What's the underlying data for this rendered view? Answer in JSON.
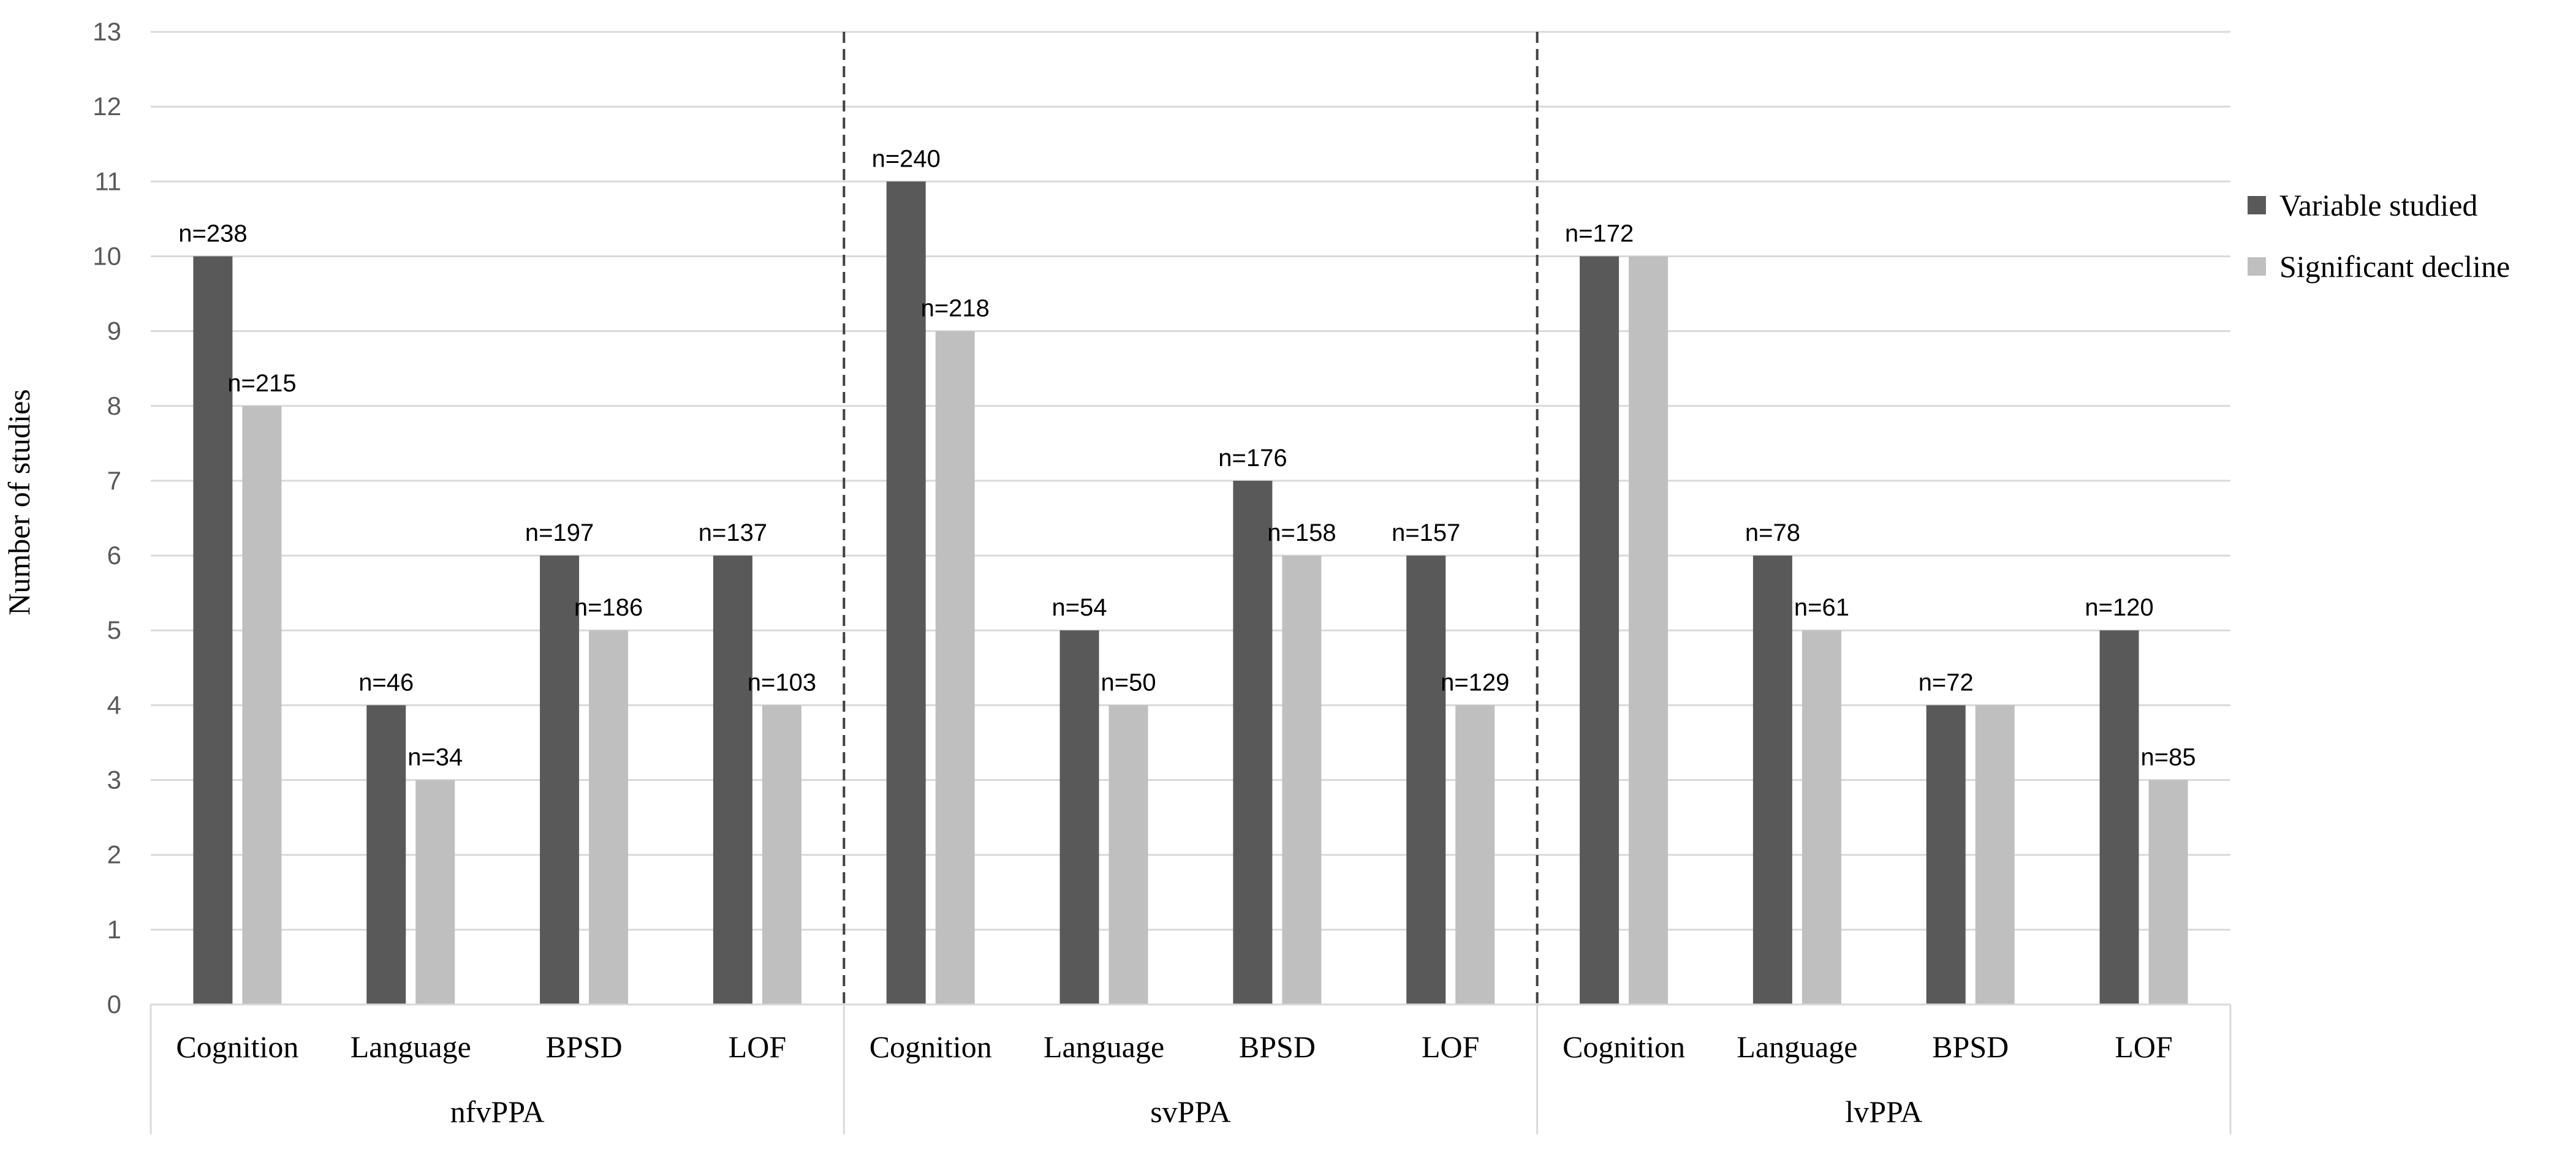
{
  "colors": {
    "variable_studied": "#595959",
    "significant_decline": "#bfbfbf",
    "grid": "#d9d9d9",
    "separator": "#404040"
  },
  "chart_data": {
    "type": "bar",
    "ylabel": "Number of studies",
    "ylim": [
      0,
      13
    ],
    "yticks": [
      0,
      1,
      2,
      3,
      4,
      5,
      6,
      7,
      8,
      9,
      10,
      11,
      12,
      13
    ],
    "grid": true,
    "legend_position": "right",
    "groups": [
      {
        "name": "nfvPPA",
        "categories": [
          "Cognition",
          "Language",
          "BPSD",
          "LOF"
        ],
        "variable_studied": [
          10,
          4,
          6,
          6
        ],
        "significant_decline": [
          8,
          3,
          5,
          4
        ],
        "labels": [
          [
            "n=238",
            "n=215"
          ],
          [
            "n=46",
            "n=34"
          ],
          [
            "n=197",
            "n=186"
          ],
          [
            "n=137",
            "n=103"
          ]
        ]
      },
      {
        "name": "svPPA",
        "categories": [
          "Cognition",
          "Language",
          "BPSD",
          "LOF"
        ],
        "variable_studied": [
          11,
          5,
          7,
          6
        ],
        "significant_decline": [
          9,
          4,
          6,
          4
        ],
        "labels": [
          [
            "n=240",
            "n=218"
          ],
          [
            "n=54",
            "n=50"
          ],
          [
            "n=176",
            "n=158"
          ],
          [
            "n=157",
            "n=129"
          ]
        ]
      },
      {
        "name": "lvPPA",
        "categories": [
          "Cognition",
          "Language",
          "BPSD",
          "LOF"
        ],
        "variable_studied": [
          10,
          6,
          4,
          5
        ],
        "significant_decline": [
          10,
          5,
          4,
          3
        ],
        "labels": [
          [
            "n=172",
            ""
          ],
          [
            "n=78",
            "n=61"
          ],
          [
            "n=72",
            ""
          ],
          [
            "n=120",
            "n=85"
          ]
        ]
      }
    ],
    "series": [
      {
        "key": "variable_studied",
        "name": "Variable studied"
      },
      {
        "key": "significant_decline",
        "name": "Significant decline"
      }
    ]
  }
}
